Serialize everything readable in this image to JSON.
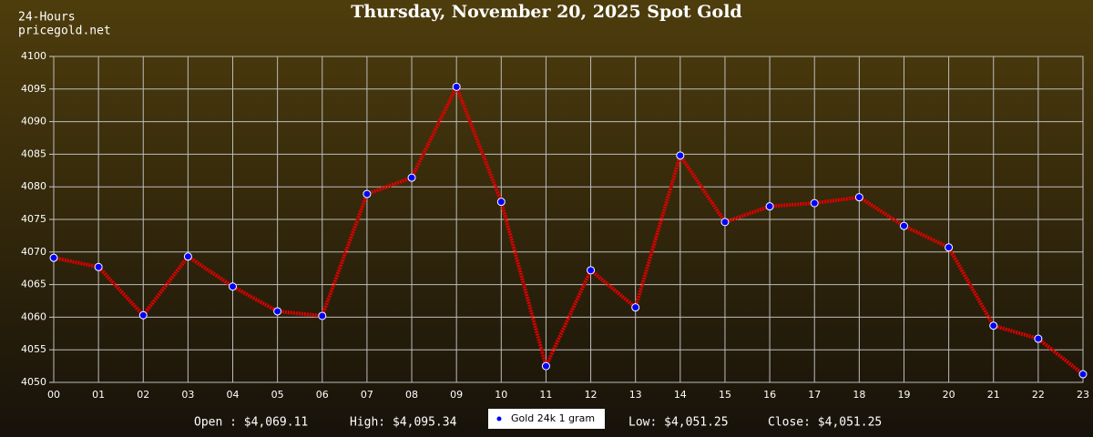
{
  "chart_data": {
    "type": "line",
    "title": "Thursday, November 20, 2025 Spot Gold",
    "header": [
      "24-Hours",
      "pricegold.net"
    ],
    "categories": [
      "00",
      "01",
      "02",
      "03",
      "04",
      "05",
      "06",
      "07",
      "08",
      "09",
      "10",
      "11",
      "12",
      "13",
      "14",
      "15",
      "16",
      "17",
      "18",
      "19",
      "20",
      "21",
      "22",
      "23"
    ],
    "series": [
      {
        "name": "Gold 24k 1 gram",
        "color": "#e00000",
        "marker_color": "#0000ff",
        "values": [
          4069.11,
          4067.7,
          4060.3,
          4069.3,
          4064.7,
          4060.9,
          4060.2,
          4078.9,
          4081.4,
          4095.34,
          4077.7,
          4052.5,
          4067.2,
          4061.5,
          4084.8,
          4074.6,
          4077.0,
          4077.5,
          4078.4,
          4074.0,
          4070.7,
          4058.7,
          4056.7,
          4051.25
        ]
      }
    ],
    "ylim": [
      4050,
      4100
    ],
    "yticks": [
      4050,
      4055,
      4060,
      4065,
      4070,
      4075,
      4080,
      4085,
      4090,
      4095,
      4100
    ],
    "grid": true,
    "stats_left": [
      "Open : $4,069.11",
      "High: $4,095.34"
    ],
    "stats_right": [
      "Low: $4,051.25",
      "Close: $4,051.25"
    ]
  }
}
